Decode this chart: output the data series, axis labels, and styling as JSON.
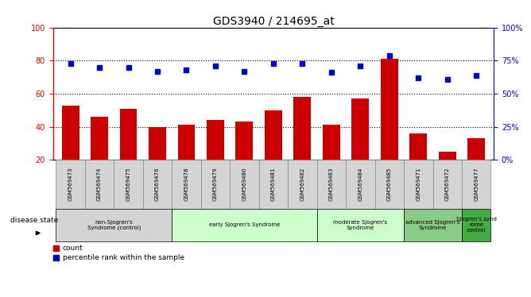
{
  "title": "GDS3940 / 214695_at",
  "samples": [
    "GSM569473",
    "GSM569474",
    "GSM569475",
    "GSM569476",
    "GSM569478",
    "GSM569479",
    "GSM569480",
    "GSM569481",
    "GSM569482",
    "GSM569483",
    "GSM569484",
    "GSM569485",
    "GSM569471",
    "GSM569472",
    "GSM569477"
  ],
  "count_values": [
    53,
    46,
    51,
    40,
    41,
    44,
    43,
    50,
    58,
    41,
    57,
    81,
    36,
    25,
    33
  ],
  "percentile_values": [
    73,
    70,
    70,
    67,
    68,
    71,
    67,
    73,
    73,
    66,
    71,
    79,
    62,
    61,
    64
  ],
  "bar_color": "#cc0000",
  "dot_color": "#0000cc",
  "ylim_left": [
    20,
    100
  ],
  "ylim_right": [
    0,
    100
  ],
  "yticks_left": [
    20,
    40,
    60,
    80,
    100
  ],
  "yticks_right": [
    0,
    25,
    50,
    75,
    100
  ],
  "bar_width": 0.6,
  "legend_count_label": "count",
  "legend_percentile_label": "percentile rank within the sample",
  "disease_state_label": "disease state",
  "group_specs": [
    {
      "label": "non-Sjogren's\nSyndrome (control)",
      "indices": [
        0,
        1,
        2,
        3
      ],
      "color": "#d4d4d4"
    },
    {
      "label": "early Sjogren's Syndrome",
      "indices": [
        4,
        5,
        6,
        7,
        8
      ],
      "color": "#ccffcc"
    },
    {
      "label": "moderate Sjogren's\nSyndrome",
      "indices": [
        9,
        10,
        11
      ],
      "color": "#ccffcc"
    },
    {
      "label": "advanced Sjogren's\nSyndrome",
      "indices": [
        12,
        13
      ],
      "color": "#88cc88"
    },
    {
      "label": "Sjogren's synd\nrome\ncontrol",
      "indices": [
        14
      ],
      "color": "#44aa44"
    }
  ],
  "sample_box_color": "#d4d4d4",
  "sample_box_edge": "#888888"
}
